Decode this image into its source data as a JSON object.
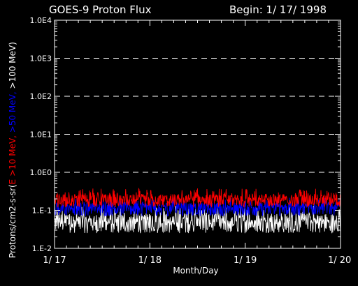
{
  "chart_data": {
    "type": "line",
    "title": "GOES-9 Proton Flux",
    "subtitle": "Begin: 1/ 17/ 1998",
    "xlabel": "Month/Day",
    "ylabel_parts": [
      {
        "text": "Protons/cm2-s-sr(",
        "color": "#ffffff"
      },
      {
        "text": "E >10 MeV,",
        "color": "#ff0000"
      },
      {
        "text": " >50 MeV,",
        "color": "#0000ff"
      },
      {
        "text": " >100 MeV",
        "color": "#ffffff"
      },
      {
        "text": ")",
        "color": "#ffffff"
      }
    ],
    "y_scale": "log",
    "ylim": [
      0.01,
      10000
    ],
    "xlim": [
      0,
      3
    ],
    "x_ticks": [
      {
        "value": 0,
        "label": "1/ 17"
      },
      {
        "value": 1,
        "label": "1/ 18"
      },
      {
        "value": 2,
        "label": "1/ 19"
      },
      {
        "value": 3,
        "label": "1/ 20"
      }
    ],
    "y_ticks": [
      {
        "value": 0.01,
        "label": "1.E-2"
      },
      {
        "value": 0.1,
        "label": "1.E-1"
      },
      {
        "value": 1,
        "label": "1.0E0"
      },
      {
        "value": 10,
        "label": "1.0E1"
      },
      {
        "value": 100,
        "label": "1.0E2"
      },
      {
        "value": 1000,
        "label": "1.0E3"
      },
      {
        "value": 10000,
        "label": "1.0E4"
      }
    ],
    "gridlines_dashed": [
      1,
      10,
      100,
      1000
    ],
    "background": "#000000",
    "series": [
      {
        "label": "E >10 MeV",
        "color": "#ff0000",
        "baseline": 0.19,
        "spread_low": 0.12,
        "spread_high": 0.38
      },
      {
        "label": ">50 MeV",
        "color": "#0000ff",
        "baseline": 0.12,
        "spread_low": 0.07,
        "spread_high": 0.22
      },
      {
        "label": ">100 MeV",
        "color": "#ffffff",
        "baseline": 0.05,
        "spread_low": 0.025,
        "spread_high": 0.14
      }
    ]
  }
}
